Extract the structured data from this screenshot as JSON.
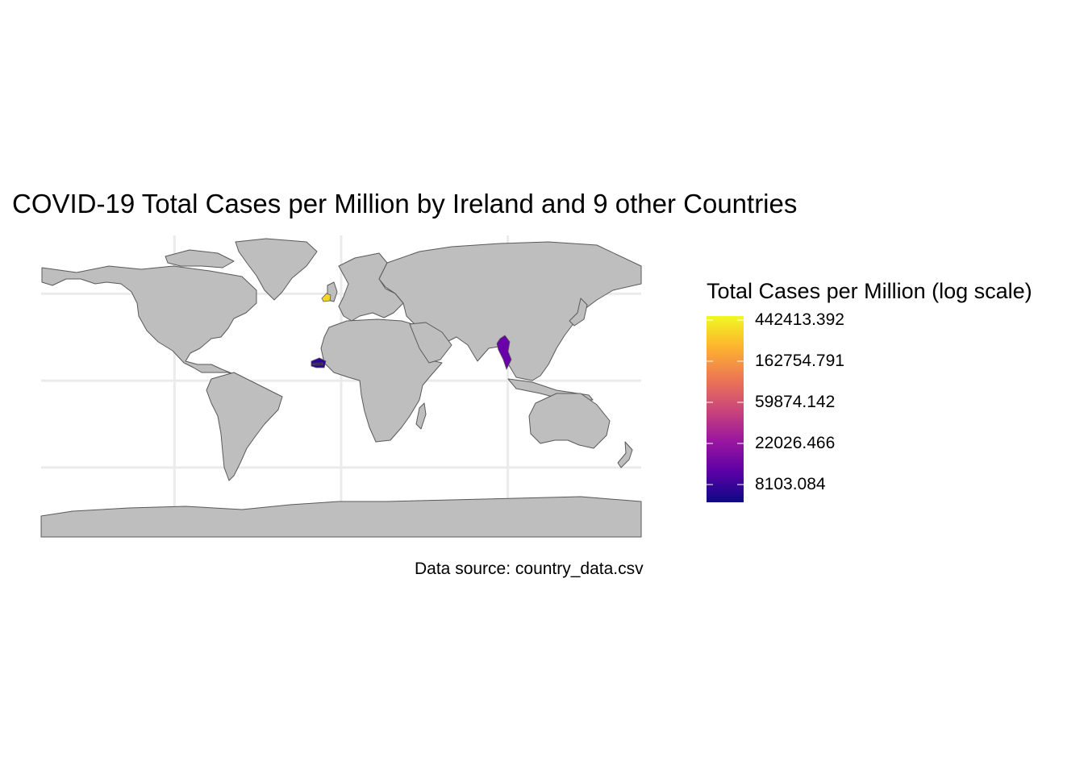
{
  "title": "COVID-19 Total Cases per Million by Ireland and 9 other Countries",
  "caption": "Data source: country_data.csv",
  "legend": {
    "title": "Total Cases per Million (log scale)",
    "scale": "log",
    "breaks": [
      "442413.392",
      "162754.791",
      "59874.142",
      "22026.466",
      "8103.084"
    ],
    "colors": [
      "#0d0887",
      "#5c01a6",
      "#9c179e",
      "#cc4778",
      "#ed7953",
      "#fdb32f",
      "#f0f921"
    ]
  },
  "map": {
    "land_color": "#bebebe",
    "border_color": "#595959",
    "grid_color": "#ebebeb",
    "highlighted": [
      {
        "name": "Ireland",
        "color": "#f5d327"
      },
      {
        "name": "Myanmar",
        "color": "#6a00a8"
      },
      {
        "name": "Senegal",
        "color": "#2c0594"
      },
      {
        "name": "Gambia",
        "color": "#1e0a8c"
      }
    ]
  }
}
